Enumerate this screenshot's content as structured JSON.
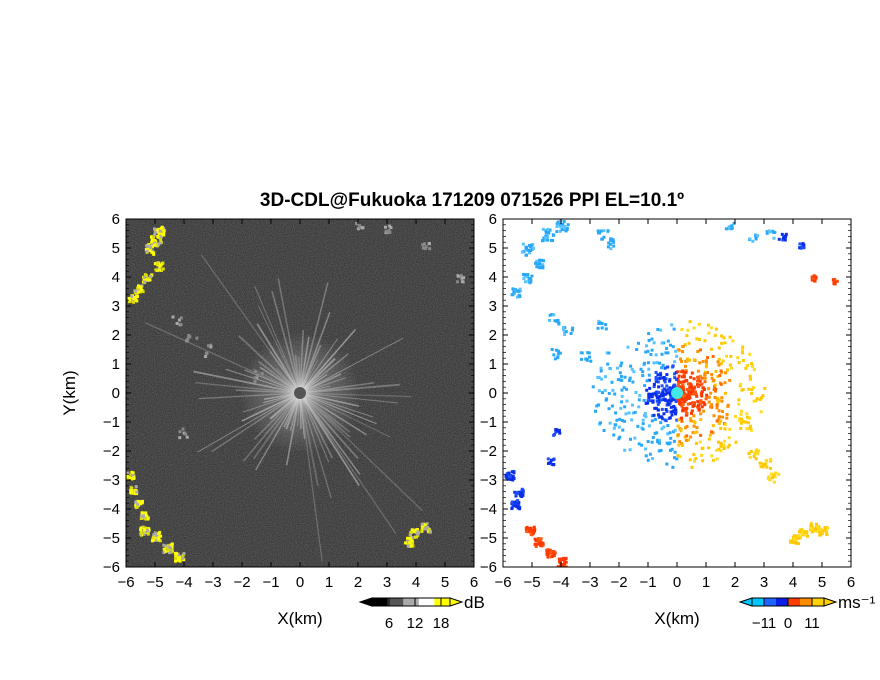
{
  "chart_data": {
    "type": "heatmap",
    "title": "3D-CDL@Fukuoka 171209 071526 PPI EL=10.1º",
    "panels": [
      {
        "name": "intensity",
        "xlabel": "X(km)",
        "ylabel": "Y(km)",
        "xlim": [
          -6,
          6
        ],
        "ylim": [
          -6,
          6
        ],
        "xticks": [
          -6,
          -5,
          -4,
          -3,
          -2,
          -1,
          0,
          1,
          2,
          3,
          4,
          5,
          6
        ],
        "yticks": [
          6,
          5,
          4,
          3,
          2,
          1,
          0,
          -1,
          -2,
          -3,
          -4,
          -5,
          -6
        ],
        "colorbar": {
          "unit": "dB",
          "ticks": [
            6,
            12,
            18
          ],
          "colors": [
            "#000000",
            "#555555",
            "#aaaaaa",
            "#ffffff",
            "#ffff00"
          ]
        }
      },
      {
        "name": "doppler-velocity",
        "xlabel": "X(km)",
        "ylabel": "",
        "xlim": [
          -6,
          6
        ],
        "ylim": [
          -6,
          6
        ],
        "xticks": [
          -6,
          -5,
          -4,
          -3,
          -2,
          -1,
          0,
          1,
          2,
          3,
          4,
          5,
          6
        ],
        "yticks": [
          6,
          5,
          4,
          3,
          2,
          1,
          0,
          -1,
          -2,
          -3,
          -4,
          -5,
          -6
        ],
        "colorbar": {
          "unit": "ms⁻¹",
          "ticks": [
            -11,
            0,
            11
          ],
          "colors": [
            "#00c8ff",
            "#1e64ff",
            "#0a1ee6",
            "#ff3c00",
            "#ff8c00",
            "#ffd200"
          ]
        }
      }
    ],
    "colors": {
      "background_field": "#2c2c2c",
      "echo_yellow": "#ffff00",
      "center_marker_intensity": "#555555",
      "center_marker_velocity": "#40e8e8"
    }
  }
}
